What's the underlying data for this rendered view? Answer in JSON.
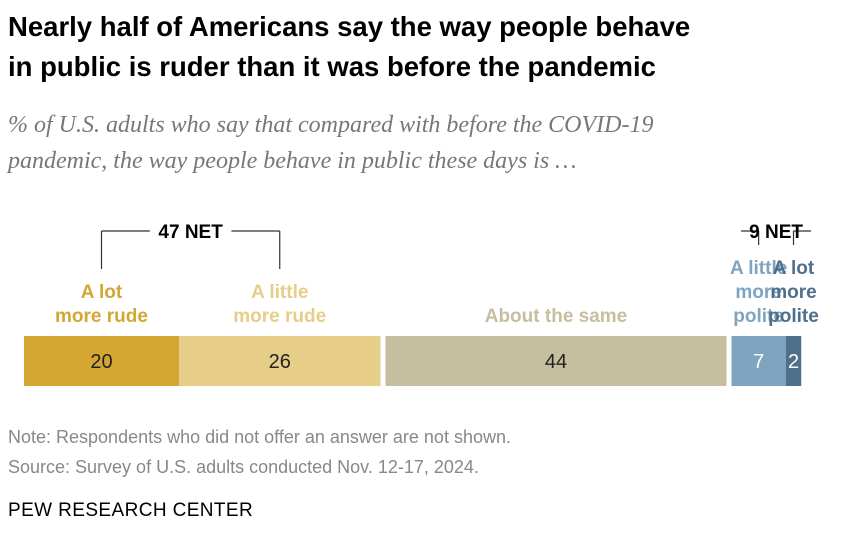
{
  "title_lines": [
    "Nearly half of Americans say the way people behave",
    "in public is ruder than it was before the pandemic"
  ],
  "subtitle_lines": [
    "% of U.S. adults who say that compared with before the COVID-19",
    "pandemic, the way people behave in public these days is …"
  ],
  "note": "Note: Respondents who did not offer an answer are not shown.",
  "source": "Source: Survey of U.S. adults conducted Nov. 12-17, 2024.",
  "footer": "PEW RESEARCH CENTER",
  "chart_data": {
    "type": "bar",
    "orientation": "horizontal-stacked",
    "categories": [
      "A lot more rude",
      "A little more rude",
      "About the same",
      "A little more polite",
      "A lot more polite"
    ],
    "values": [
      20,
      26,
      44,
      7,
      2
    ],
    "colors": [
      "#d4a634",
      "#e6cd88",
      "#c5bf9f",
      "#7fa4bf",
      "#4f6f8b"
    ],
    "label_colors": [
      "#d4a634",
      "#e6cd88",
      "#c5bf9f",
      "#7fa4bf",
      "#4f6f8b"
    ],
    "category_label_lines": [
      [
        "A lot",
        "more rude"
      ],
      [
        "A little",
        "more rude"
      ],
      [
        "About the same"
      ],
      [
        "A little",
        "more",
        "polite"
      ],
      [
        "A lot",
        "more",
        "polite"
      ]
    ],
    "nets": [
      {
        "label": "47 NET",
        "segments": [
          0,
          1
        ]
      },
      {
        "label": "9 NET",
        "segments": [
          3,
          4
        ]
      }
    ]
  }
}
